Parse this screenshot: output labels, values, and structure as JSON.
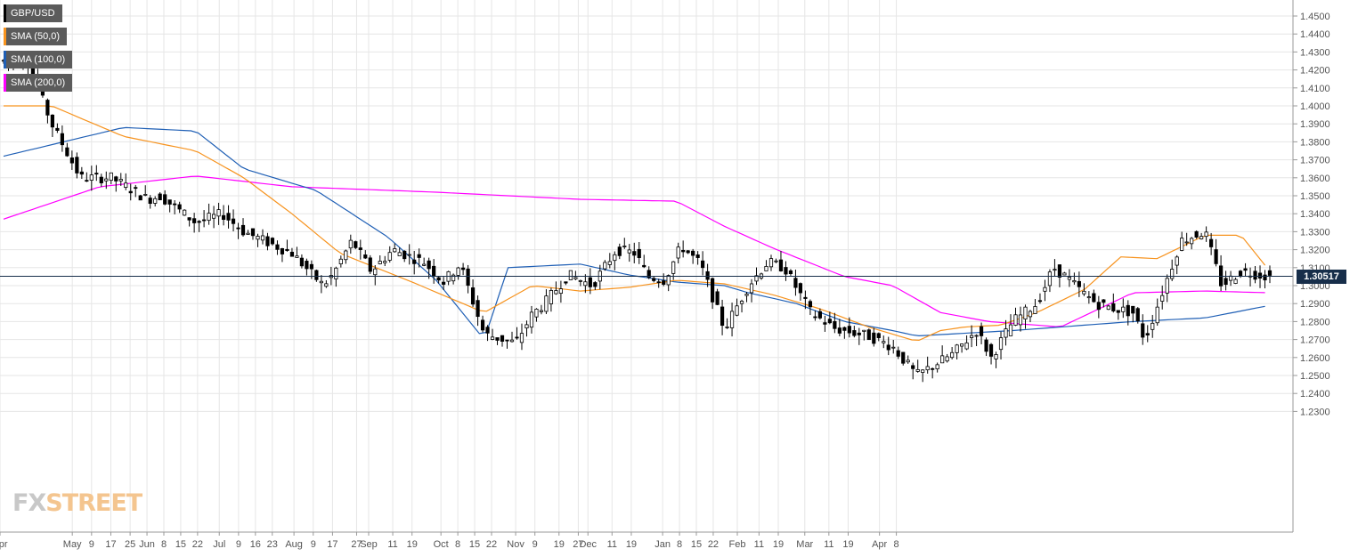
{
  "chart_data": {
    "type": "candlestick",
    "symbol": "GBP/USD",
    "legend": [
      {
        "label": "GBP/USD",
        "color": "#000000"
      },
      {
        "label": "SMA (50,0)",
        "color": "#f7931e"
      },
      {
        "label": "SMA (100,0)",
        "color": "#1f5fb5"
      },
      {
        "label": "SMA (200,0)",
        "color": "#ff00ff"
      }
    ],
    "ylim": [
      1.22,
      1.46
    ],
    "y_ticks": [
      "1.2300",
      "1.2400",
      "1.2500",
      "1.2600",
      "1.2700",
      "1.2800",
      "1.2900",
      "1.3000",
      "1.3100",
      "1.3200",
      "1.3300",
      "1.3400",
      "1.3500",
      "1.3600",
      "1.3700",
      "1.3800",
      "1.3900",
      "1.4000",
      "1.4100",
      "1.4200",
      "1.4300",
      "1.4400",
      "1.4500"
    ],
    "x_ticks": [
      "Apr",
      "May",
      "9",
      "17",
      "25",
      "Jun",
      "8",
      "15",
      "22",
      "Jul",
      "9",
      "16",
      "23",
      "Aug",
      "9",
      "17",
      "27",
      "Sep",
      "11",
      "19",
      "Oct",
      "8",
      "15",
      "22",
      "Nov",
      "9",
      "19",
      "27",
      "Dec",
      "11",
      "19",
      "Jan",
      "8",
      "15",
      "22",
      "Feb",
      "11",
      "19",
      "Mar",
      "11",
      "19",
      "Apr",
      "8"
    ],
    "last_price": 1.30517,
    "last_price_label": "1.30517",
    "grid": true,
    "close_path": [
      [
        0,
        1.425
      ],
      [
        10,
        1.425
      ],
      [
        20,
        1.39
      ],
      [
        32,
        1.36
      ],
      [
        45,
        1.36
      ],
      [
        60,
        1.348
      ],
      [
        65,
        1.35
      ],
      [
        80,
        1.335
      ],
      [
        91,
        1.34
      ],
      [
        100,
        1.33
      ],
      [
        120,
        1.318
      ],
      [
        133,
        1.3
      ],
      [
        137,
        1.306
      ],
      [
        145,
        1.325
      ],
      [
        153,
        1.308
      ],
      [
        162,
        1.32
      ],
      [
        175,
        1.313
      ],
      [
        183,
        1.302
      ],
      [
        190,
        1.312
      ],
      [
        200,
        1.273
      ],
      [
        213,
        1.268
      ],
      [
        220,
        1.284
      ],
      [
        225,
        1.29
      ],
      [
        235,
        1.306
      ],
      [
        245,
        1.3
      ],
      [
        250,
        1.31
      ],
      [
        255,
        1.32
      ],
      [
        263,
        1.318
      ],
      [
        268,
        1.305
      ],
      [
        275,
        1.303
      ],
      [
        282,
        1.322
      ],
      [
        290,
        1.312
      ],
      [
        300,
        1.276
      ],
      [
        310,
        1.3
      ],
      [
        318,
        1.313
      ],
      [
        325,
        1.31
      ],
      [
        336,
        1.285
      ],
      [
        346,
        1.276
      ],
      [
        360,
        1.272
      ],
      [
        370,
        1.266
      ],
      [
        380,
        1.25
      ],
      [
        395,
        1.262
      ],
      [
        405,
        1.275
      ],
      [
        411,
        1.26
      ],
      [
        420,
        1.28
      ],
      [
        430,
        1.29
      ],
      [
        437,
        1.31
      ],
      [
        442,
        1.305
      ],
      [
        450,
        1.295
      ],
      [
        455,
        1.29
      ],
      [
        460,
        1.288
      ],
      [
        470,
        1.285
      ],
      [
        475,
        1.27
      ],
      [
        480,
        1.288
      ],
      [
        490,
        1.325
      ],
      [
        500,
        1.33
      ],
      [
        507,
        1.3
      ],
      [
        515,
        1.308
      ],
      [
        527,
        1.305
      ]
    ],
    "sma50": [
      [
        0,
        1.4
      ],
      [
        20,
        1.4
      ],
      [
        50,
        1.383
      ],
      [
        80,
        1.375
      ],
      [
        100,
        1.36
      ],
      [
        120,
        1.34
      ],
      [
        140,
        1.318
      ],
      [
        170,
        1.302
      ],
      [
        200,
        1.285
      ],
      [
        220,
        1.3
      ],
      [
        240,
        1.297
      ],
      [
        260,
        1.299
      ],
      [
        280,
        1.303
      ],
      [
        300,
        1.301
      ],
      [
        320,
        1.295
      ],
      [
        340,
        1.287
      ],
      [
        360,
        1.277
      ],
      [
        380,
        1.269
      ],
      [
        390,
        1.275
      ],
      [
        400,
        1.277
      ],
      [
        415,
        1.278
      ],
      [
        430,
        1.285
      ],
      [
        450,
        1.298
      ],
      [
        465,
        1.316
      ],
      [
        480,
        1.315
      ],
      [
        500,
        1.328
      ],
      [
        515,
        1.328
      ],
      [
        527,
        1.308
      ]
    ],
    "sma100": [
      [
        0,
        1.372
      ],
      [
        50,
        1.388
      ],
      [
        80,
        1.386
      ],
      [
        100,
        1.365
      ],
      [
        130,
        1.353
      ],
      [
        160,
        1.327
      ],
      [
        180,
        1.303
      ],
      [
        200,
        1.27
      ],
      [
        210,
        1.31
      ],
      [
        240,
        1.312
      ],
      [
        260,
        1.306
      ],
      [
        280,
        1.302
      ],
      [
        300,
        1.3
      ],
      [
        310,
        1.296
      ],
      [
        330,
        1.29
      ],
      [
        350,
        1.28
      ],
      [
        370,
        1.275
      ],
      [
        380,
        1.272
      ],
      [
        420,
        1.275
      ],
      [
        470,
        1.28
      ],
      [
        500,
        1.282
      ],
      [
        527,
        1.289
      ]
    ],
    "sma200": [
      [
        0,
        1.337
      ],
      [
        40,
        1.355
      ],
      [
        80,
        1.361
      ],
      [
        120,
        1.355
      ],
      [
        180,
        1.352
      ],
      [
        240,
        1.348
      ],
      [
        280,
        1.347
      ],
      [
        300,
        1.333
      ],
      [
        320,
        1.321
      ],
      [
        350,
        1.305
      ],
      [
        370,
        1.3
      ],
      [
        390,
        1.285
      ],
      [
        410,
        1.28
      ],
      [
        440,
        1.277
      ],
      [
        470,
        1.296
      ],
      [
        500,
        1.297
      ],
      [
        527,
        1.296
      ]
    ]
  }
}
